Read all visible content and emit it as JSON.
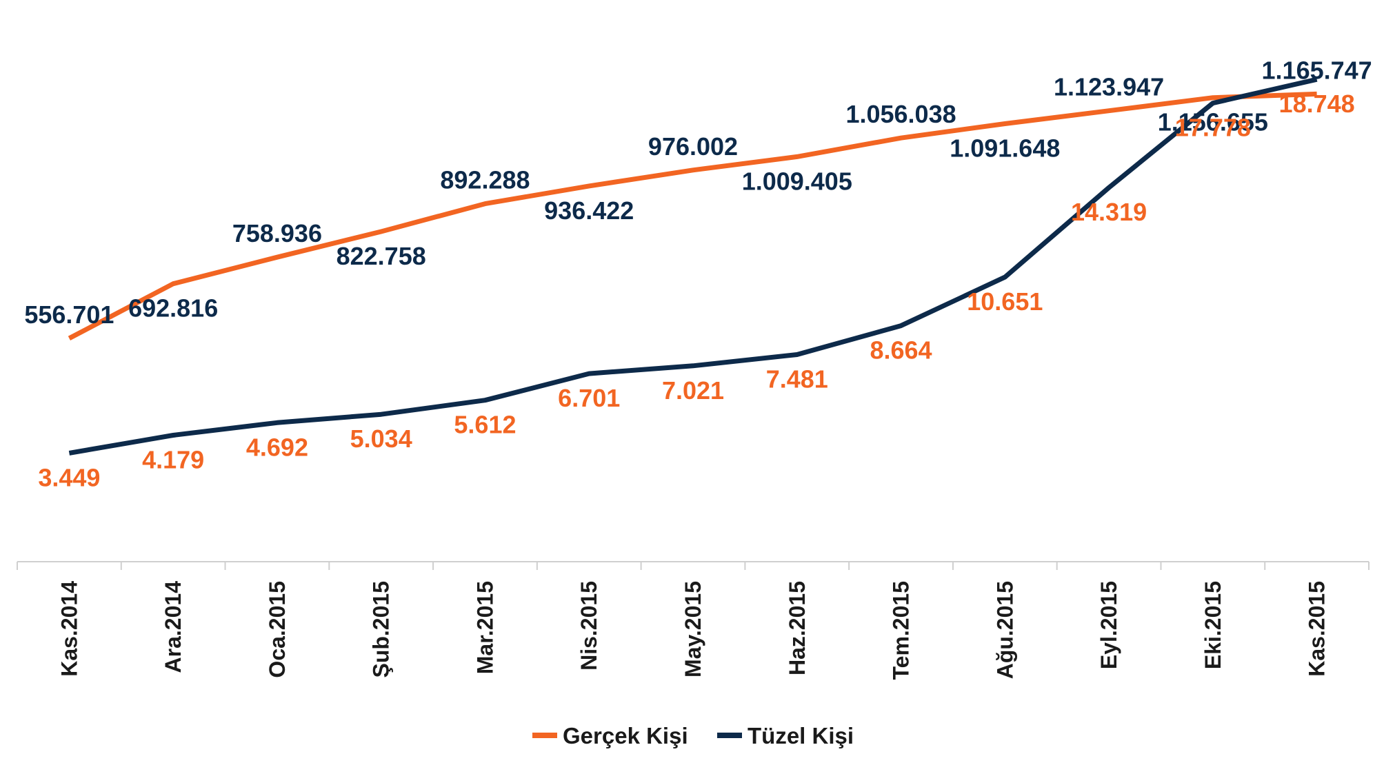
{
  "chart_data": {
    "type": "line",
    "title": "",
    "xlabel": "",
    "ylabel": "",
    "categories": [
      "Kas.2014",
      "Ara.2014",
      "Oca.2015",
      "Şub.2015",
      "Mar.2015",
      "Nis.2015",
      "May.2015",
      "Haz.2015",
      "Tem.2015",
      "Ağu.2015",
      "Eyl.2015",
      "Eki.2015",
      "Kas.2015"
    ],
    "series": [
      {
        "name": "Gerçek Kişi",
        "color": "#f26522",
        "axis": "left",
        "values": [
          556701,
          692816,
          758936,
          822758,
          892288,
          936422,
          976002,
          1009405,
          1056038,
          1091648,
          1123947,
          1156655,
          1165747
        ],
        "labels": [
          "556.701",
          "692.816",
          "758.936",
          "822.758",
          "892.288",
          "936.422",
          "976.002",
          "1.009.405",
          "1.056.038",
          "1.091.648",
          "1.123.947",
          "1.156.655",
          "1.165.747"
        ],
        "label_color": "#0d2a4a"
      },
      {
        "name": "Tüzel Kişi",
        "color": "#0d2a4a",
        "axis": "right",
        "values": [
          3449,
          4179,
          4692,
          5034,
          5612,
          6701,
          7021,
          7481,
          8664,
          10651,
          14319,
          17778,
          18748
        ],
        "labels": [
          "3.449",
          "4.179",
          "4.692",
          "5.034",
          "5.612",
          "6.701",
          "7.021",
          "7.481",
          "8.664",
          "10.651",
          "14.319",
          "17.778",
          "18.748"
        ],
        "label_color": "#f26522"
      }
    ],
    "ylim_left": [
      0,
      1400000
    ],
    "ylim_right": [
      -1000,
      22000
    ],
    "grid": false,
    "legend_position": "bottom"
  }
}
